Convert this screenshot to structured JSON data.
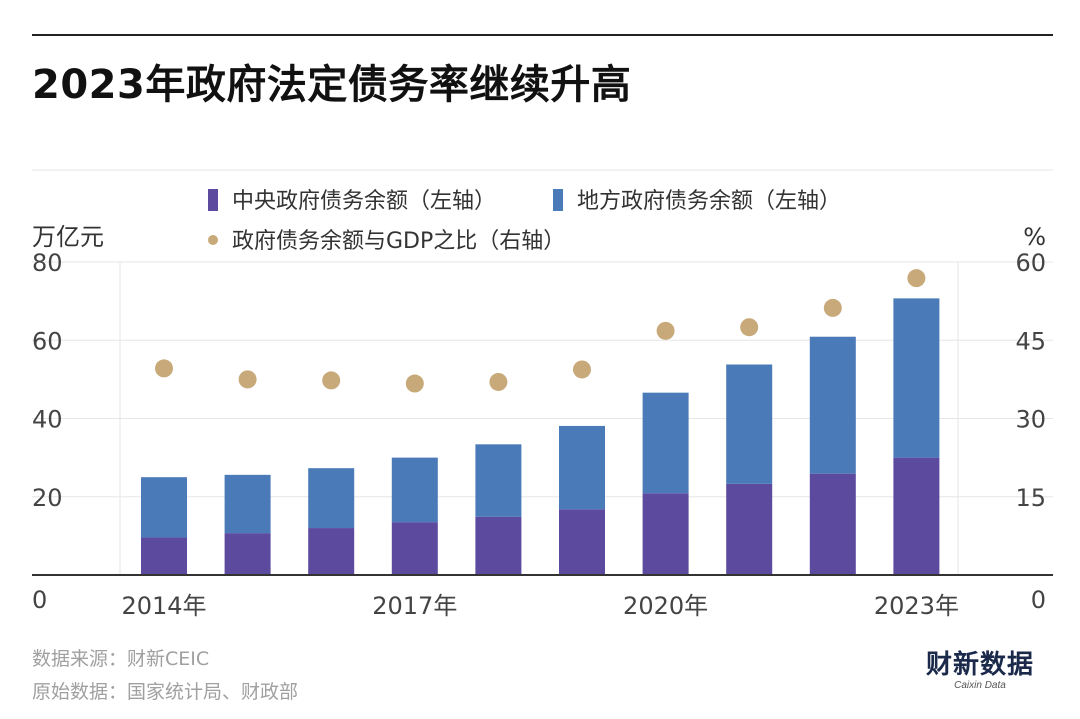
{
  "title": "2023年政府法定债务率继续升高",
  "chart_data": {
    "type": "bar",
    "stacked": true,
    "categories": [
      "2014",
      "2015",
      "2016",
      "2017",
      "2018",
      "2019",
      "2020",
      "2021",
      "2022",
      "2023"
    ],
    "x_tick_labels": [
      {
        "index": 0,
        "label": "2014年"
      },
      {
        "index": 3,
        "label": "2017年"
      },
      {
        "index": 6,
        "label": "2020年"
      },
      {
        "index": 9,
        "label": "2023年"
      }
    ],
    "series": [
      {
        "name": "中央政府债务余额（左轴）",
        "type": "bar",
        "axis": "left",
        "color": "#5b4a9e",
        "values": [
          9.6,
          10.7,
          12.0,
          13.5,
          14.9,
          16.8,
          20.9,
          23.3,
          25.9,
          30.0
        ]
      },
      {
        "name": "地方政府债务余额（左轴）",
        "type": "bar",
        "axis": "left",
        "color": "#4a7ab8",
        "values": [
          15.4,
          14.9,
          15.3,
          16.5,
          18.5,
          21.3,
          25.7,
          30.5,
          35.0,
          40.7
        ]
      },
      {
        "name": "政府债务余额与GDP之比（右轴）",
        "type": "scatter",
        "axis": "right",
        "color": "#c8a97a",
        "values": [
          39.6,
          37.5,
          37.3,
          36.7,
          37.0,
          39.4,
          46.8,
          47.5,
          51.2,
          56.9
        ]
      }
    ],
    "left_axis": {
      "unit": "万亿元",
      "ticks": [
        0,
        20,
        40,
        60,
        80
      ],
      "ylim": [
        0,
        80
      ]
    },
    "right_axis": {
      "unit": "%",
      "ticks": [
        0,
        15,
        30,
        45,
        60
      ],
      "ylim": [
        0,
        60
      ]
    },
    "grid": true,
    "legend_placement": "top"
  },
  "footer": {
    "source": "数据来源：财新CEIC",
    "raw": "原始数据：国家统计局、财政部"
  },
  "logo": {
    "main": "财新数据",
    "sub": "Caixin Data"
  }
}
